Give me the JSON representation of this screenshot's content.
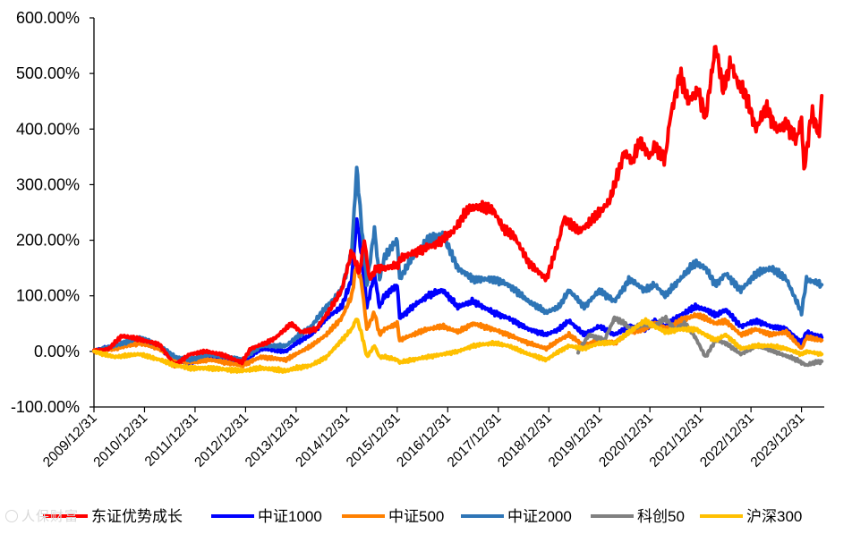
{
  "chart_data": {
    "type": "line",
    "title": "",
    "xlabel": "",
    "ylabel": "",
    "ylim": [
      -100,
      600
    ],
    "y_ticks": [
      "600.00%",
      "500.00%",
      "400.00%",
      "300.00%",
      "200.00%",
      "100.00%",
      "0.00%",
      "-100.00%"
    ],
    "y_tick_values": [
      600,
      500,
      400,
      300,
      200,
      100,
      0,
      -100
    ],
    "x_ticks": [
      "2009/12/31",
      "2010/12/31",
      "2011/12/31",
      "2012/12/31",
      "2013/12/31",
      "2014/12/31",
      "2015/12/31",
      "2016/12/31",
      "2017/12/31",
      "2018/12/31",
      "2019/12/31",
      "2020/12/31",
      "2021/12/31",
      "2022/12/31",
      "2023/12/31"
    ],
    "x_range": [
      2010.0,
      2024.45
    ],
    "legend_position": "bottom",
    "series": [
      {
        "name": "东证优势成长",
        "color": "#ff0000",
        "t": [
          2010.0,
          2010.3,
          2010.55,
          2010.9,
          2011.3,
          2011.6,
          2011.9,
          2012.2,
          2012.5,
          2012.93,
          2013.1,
          2013.4,
          2013.6,
          2013.9,
          2014.1,
          2014.4,
          2014.7,
          2014.9,
          2015.1,
          2015.25,
          2015.35,
          2015.45,
          2015.6,
          2015.75,
          2016.0,
          2016.1,
          2016.4,
          2016.8,
          2017.1,
          2017.4,
          2017.6,
          2017.9,
          2018.1,
          2018.3,
          2018.6,
          2018.95,
          2019.2,
          2019.3,
          2019.6,
          2019.9,
          2020.2,
          2020.4,
          2020.5,
          2020.65,
          2020.8,
          2021.0,
          2021.1,
          2021.3,
          2021.4,
          2021.6,
          2021.75,
          2021.95,
          2022.1,
          2022.3,
          2022.45,
          2022.6,
          2022.75,
          2022.9,
          2023.1,
          2023.3,
          2023.5,
          2023.7,
          2023.9,
          2024.0,
          2024.05,
          2024.2,
          2024.35,
          2024.4
        ],
        "v": [
          0,
          5,
          28,
          22,
          12,
          -25,
          -5,
          0,
          -5,
          -20,
          5,
          15,
          25,
          50,
          35,
          40,
          80,
          110,
          180,
          140,
          200,
          130,
          150,
          150,
          155,
          170,
          180,
          195,
          215,
          255,
          260,
          255,
          220,
          210,
          160,
          130,
          200,
          240,
          215,
          240,
          270,
          330,
          360,
          340,
          380,
          350,
          370,
          345,
          420,
          500,
          450,
          470,
          420,
          550,
          470,
          520,
          480,
          460,
          400,
          440,
          400,
          410,
          380,
          420,
          325,
          430,
          390,
          460
        ]
      },
      {
        "name": "中证1000",
        "color": "#0000ff",
        "t": [
          2010.0,
          2010.4,
          2010.9,
          2011.3,
          2011.6,
          2011.9,
          2012.3,
          2012.93,
          2013.3,
          2013.8,
          2014.0,
          2014.3,
          2014.6,
          2014.9,
          2015.1,
          2015.2,
          2015.3,
          2015.4,
          2015.55,
          2015.65,
          2015.75,
          2016.0,
          2016.05,
          2016.3,
          2016.6,
          2016.9,
          2017.2,
          2017.5,
          2017.9,
          2018.2,
          2018.6,
          2018.95,
          2019.2,
          2019.4,
          2019.7,
          2020.0,
          2020.3,
          2020.6,
          2020.9,
          2021.1,
          2021.3,
          2021.6,
          2021.9,
          2022.1,
          2022.3,
          2022.5,
          2022.8,
          2023.1,
          2023.4,
          2023.7,
          2024.0,
          2024.1,
          2024.4
        ],
        "v": [
          0,
          10,
          20,
          5,
          -15,
          -20,
          -10,
          -20,
          5,
          0,
          15,
          30,
          60,
          80,
          130,
          240,
          170,
          80,
          140,
          80,
          100,
          120,
          60,
          80,
          100,
          110,
          80,
          90,
          70,
          60,
          40,
          30,
          40,
          55,
          30,
          45,
          30,
          45,
          40,
          55,
          45,
          65,
          80,
          75,
          65,
          75,
          45,
          55,
          45,
          40,
          15,
          35,
          25
        ]
      },
      {
        "name": "中证500",
        "color": "#ff8000",
        "t": [
          2010.0,
          2010.4,
          2010.9,
          2011.3,
          2011.6,
          2011.9,
          2012.3,
          2012.93,
          2013.3,
          2013.8,
          2014.0,
          2014.3,
          2014.6,
          2014.9,
          2015.1,
          2015.2,
          2015.3,
          2015.4,
          2015.55,
          2015.65,
          2015.75,
          2016.0,
          2016.05,
          2016.3,
          2016.6,
          2016.9,
          2017.2,
          2017.5,
          2017.9,
          2018.2,
          2018.6,
          2018.95,
          2019.2,
          2019.4,
          2019.7,
          2020.0,
          2020.3,
          2020.6,
          2020.9,
          2021.1,
          2021.3,
          2021.6,
          2021.9,
          2022.1,
          2022.3,
          2022.5,
          2022.8,
          2023.1,
          2023.4,
          2023.7,
          2024.0,
          2024.1,
          2024.4
        ],
        "v": [
          0,
          5,
          15,
          5,
          -15,
          -20,
          -15,
          -25,
          -10,
          -15,
          -5,
          10,
          30,
          60,
          100,
          160,
          120,
          40,
          70,
          30,
          40,
          50,
          20,
          30,
          40,
          45,
          35,
          50,
          40,
          30,
          15,
          5,
          20,
          30,
          10,
          20,
          15,
          35,
          40,
          50,
          40,
          55,
          65,
          60,
          50,
          55,
          30,
          40,
          30,
          35,
          5,
          25,
          20
        ]
      },
      {
        "name": "中证2000",
        "color": "#2e75b6",
        "t": [
          2010.0,
          2010.4,
          2010.9,
          2011.3,
          2011.6,
          2011.9,
          2012.3,
          2012.93,
          2013.3,
          2013.8,
          2014.0,
          2014.3,
          2014.6,
          2014.9,
          2015.1,
          2015.2,
          2015.3,
          2015.4,
          2015.55,
          2015.65,
          2015.75,
          2016.0,
          2016.05,
          2016.3,
          2016.6,
          2016.9,
          2017.2,
          2017.5,
          2017.9,
          2018.2,
          2018.6,
          2018.95,
          2019.2,
          2019.4,
          2019.7,
          2020.0,
          2020.3,
          2020.6,
          2020.9,
          2021.1,
          2021.3,
          2021.6,
          2021.9,
          2022.1,
          2022.3,
          2022.5,
          2022.8,
          2023.1,
          2023.4,
          2023.7,
          2024.0,
          2024.1,
          2024.4
        ],
        "v": [
          0,
          10,
          25,
          10,
          -10,
          -15,
          -5,
          -15,
          10,
          10,
          25,
          45,
          80,
          110,
          180,
          330,
          220,
          120,
          220,
          130,
          170,
          200,
          130,
          170,
          200,
          210,
          150,
          130,
          130,
          120,
          90,
          70,
          80,
          110,
          80,
          110,
          90,
          130,
          110,
          120,
          100,
          130,
          160,
          150,
          120,
          140,
          110,
          140,
          150,
          130,
          70,
          130,
          120
        ]
      },
      {
        "name": "科创50",
        "color": "#808080",
        "t": [
          2019.58,
          2019.8,
          2020.1,
          2020.3,
          2020.5,
          2020.6,
          2020.9,
          2021.1,
          2021.3,
          2021.5,
          2021.7,
          2021.9,
          2022.1,
          2022.3,
          2022.5,
          2022.8,
          2023.1,
          2023.3,
          2023.6,
          2023.9,
          2024.1,
          2024.25,
          2024.4
        ],
        "v": [
          0,
          30,
          20,
          60,
          50,
          40,
          50,
          45,
          60,
          40,
          50,
          25,
          -10,
          20,
          15,
          -5,
          10,
          5,
          -5,
          -15,
          -25,
          -20,
          -18
        ]
      },
      {
        "name": "沪深300",
        "color": "#ffc000",
        "t": [
          2010.0,
          2010.4,
          2010.9,
          2011.3,
          2011.6,
          2011.9,
          2012.3,
          2012.93,
          2013.3,
          2013.8,
          2014.0,
          2014.3,
          2014.6,
          2014.9,
          2015.1,
          2015.2,
          2015.3,
          2015.4,
          2015.55,
          2015.65,
          2015.75,
          2016.0,
          2016.05,
          2016.3,
          2016.6,
          2016.9,
          2017.2,
          2017.5,
          2017.9,
          2018.2,
          2018.6,
          2018.95,
          2019.2,
          2019.4,
          2019.7,
          2020.0,
          2020.3,
          2020.6,
          2020.9,
          2021.1,
          2021.3,
          2021.6,
          2021.9,
          2022.1,
          2022.3,
          2022.5,
          2022.8,
          2023.1,
          2023.4,
          2023.7,
          2024.0,
          2024.1,
          2024.4
        ],
        "v": [
          0,
          -10,
          -5,
          -15,
          -25,
          -30,
          -30,
          -35,
          -30,
          -35,
          -30,
          -25,
          -10,
          20,
          40,
          60,
          30,
          -10,
          10,
          -10,
          -10,
          -15,
          -20,
          -15,
          -10,
          -5,
          0,
          10,
          15,
          10,
          -5,
          -15,
          0,
          10,
          5,
          15,
          15,
          35,
          55,
          45,
          35,
          40,
          40,
          30,
          20,
          30,
          5,
          10,
          10,
          5,
          -5,
          0,
          -5
        ]
      }
    ]
  },
  "watermark_text": "人保财富"
}
